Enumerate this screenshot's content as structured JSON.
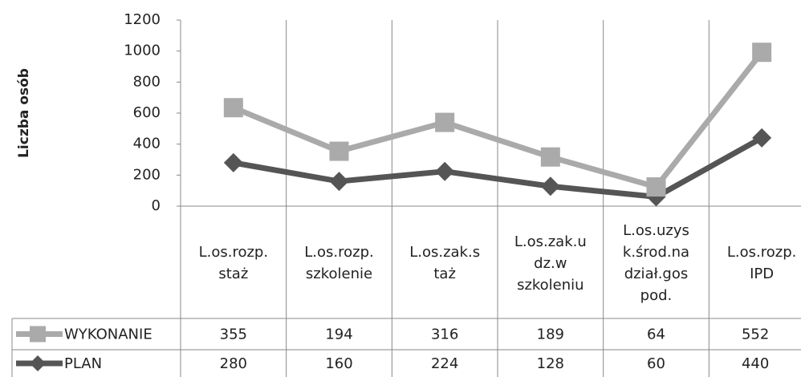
{
  "chart_data": {
    "type": "line",
    "stacked": true,
    "ylabel": "Liczba osób",
    "categories": [
      "L.os.rozp.\nstaż",
      "L.os.rozp.\nszkolenie",
      "L.os.zak.s\ntaż",
      "L.os.zak.u\ndz.w\nszkoleniu",
      "L.os.uzys\nk.środ.na\ndział.gos\npod.",
      "L.os.rozp.\nIPD"
    ],
    "series": [
      {
        "name": "WYKONANIE",
        "color": "#aaaaaa",
        "marker": "square",
        "values": [
          355,
          194,
          316,
          189,
          64,
          552
        ]
      },
      {
        "name": "PLAN",
        "color": "#555555",
        "marker": "diamond",
        "values": [
          280,
          160,
          224,
          128,
          60,
          440
        ]
      }
    ],
    "ylim": [
      0,
      1200
    ],
    "yticks": [
      0,
      200,
      400,
      600,
      800,
      1000,
      1200
    ],
    "grid": false,
    "data_table": true
  }
}
